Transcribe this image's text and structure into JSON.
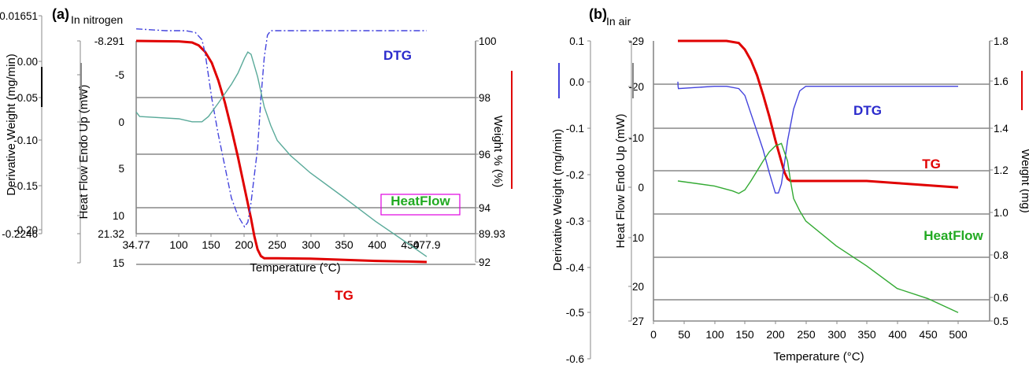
{
  "chart_data": [
    {
      "type": "line",
      "panel_label": "(a)",
      "subtitle": "In nitrogen",
      "xlabel": "Temperature (°C)",
      "xlim": [
        34.77,
        477.9
      ],
      "xticks": [
        "34.77",
        "100",
        "150",
        "200",
        "250",
        "300",
        "350",
        "400",
        "450",
        "477.9"
      ],
      "y_axes": [
        {
          "label": "Derivative Weight (mg/min)",
          "ticks": [
            "0.01651",
            "0.00",
            "-0.05",
            "-0.10",
            "-0.15",
            "-0.20",
            "-0.2246"
          ],
          "ylim": [
            -0.2246,
            0.01651
          ],
          "key_color": "#000000"
        },
        {
          "label": "Heat Flow Endo Up (mW)",
          "ticks": [
            "-8.291",
            "-5",
            "0",
            "5",
            "10",
            "15",
            "21.32"
          ],
          "ylim": [
            21.32,
            -8.291
          ],
          "key_color": "#888888"
        },
        {
          "label": "Weight % (%)",
          "ticks": [
            "100",
            "98",
            "96",
            "94",
            "92",
            "89.93"
          ],
          "ylim": [
            89.93,
            100
          ],
          "key_color": "#e00000"
        }
      ],
      "series": [
        {
          "name": "TG",
          "axis": 2,
          "color": "#e00000",
          "x": [
            34.77,
            100,
            120,
            130,
            140,
            150,
            160,
            170,
            180,
            190,
            200,
            210,
            215,
            220,
            225,
            230,
            240,
            250,
            300,
            400,
            450,
            477.9
          ],
          "y": [
            100,
            99.98,
            99.93,
            99.8,
            99.5,
            99.0,
            98.2,
            97.2,
            96.0,
            94.7,
            93.3,
            91.9,
            91.1,
            90.5,
            90.2,
            90.1,
            90.1,
            90.1,
            90.08,
            89.98,
            89.95,
            89.93
          ]
        },
        {
          "name": "DTG",
          "axis": 0,
          "color": "#4444dd",
          "x": [
            34.77,
            80,
            110,
            125,
            135,
            140,
            145,
            150,
            160,
            170,
            180,
            190,
            200,
            205,
            210,
            220,
            225,
            230,
            235,
            240,
            250,
            300,
            350,
            400,
            450,
            477.9
          ],
          "y": [
            0.002,
            0.0,
            0.0,
            -0.002,
            -0.01,
            -0.025,
            -0.05,
            -0.075,
            -0.115,
            -0.15,
            -0.185,
            -0.205,
            -0.217,
            -0.212,
            -0.19,
            -0.13,
            -0.075,
            -0.03,
            -0.005,
            0.0,
            0.0,
            0.0,
            0.0,
            0.0,
            0.0,
            0.0
          ]
        },
        {
          "name": "HeatFlow",
          "axis": 1,
          "color": "#5aaa9a",
          "x": [
            34.77,
            40,
            100,
            120,
            135,
            145,
            160,
            180,
            190,
            200,
            205,
            210,
            220,
            230,
            240,
            250,
            270,
            300,
            350,
            400,
            450,
            477.9
          ],
          "y": [
            1.2,
            1.8,
            2.1,
            2.5,
            2.5,
            1.8,
            0.0,
            -2.5,
            -4.0,
            -6.0,
            -6.8,
            -6.5,
            -3.5,
            0.5,
            3.0,
            5.0,
            7.0,
            9.3,
            12.5,
            15.8,
            18.8,
            20.5
          ]
        }
      ],
      "annotations": [
        {
          "text": "DTG",
          "color": "#2a2acc",
          "boxed": false
        },
        {
          "text": "HeatFlow",
          "color": "#22aa22",
          "boxed": true
        },
        {
          "text": "TG",
          "color": "#e00000",
          "boxed": false
        }
      ]
    },
    {
      "type": "line",
      "panel_label": "(b)",
      "subtitle": "In air",
      "xlabel": "Temperature (°C)",
      "xlim": [
        0,
        500
      ],
      "xticks": [
        "0",
        "50",
        "100",
        "150",
        "200",
        "250",
        "300",
        "350",
        "400",
        "450",
        "500"
      ],
      "y_axes": [
        {
          "label": "Derivative Weight (mg/min)",
          "ticks": [
            "0.1",
            "0.0",
            "-0.1",
            "-0.2",
            "-0.3",
            "-0.4",
            "-0.5",
            "-0.6"
          ],
          "ylim": [
            -0.6,
            0.1
          ],
          "key_color": "#4444dd"
        },
        {
          "label": "Heat Flow Endo Up (mW)",
          "ticks": [
            "-29",
            "-20",
            "-10",
            "0",
            "10",
            "20",
            "27"
          ],
          "ylim": [
            27,
            -29
          ],
          "key_color": "#888888"
        },
        {
          "label": "Weight (mg)",
          "ticks": [
            "1.8",
            "1.6",
            "1.4",
            "1.2",
            "1.0",
            "0.8",
            "0.6",
            "0.5"
          ],
          "ylim": [
            0.5,
            1.8
          ],
          "key_color": "#e00000"
        }
      ],
      "series": [
        {
          "name": "TG",
          "axis": 2,
          "color": "#e00000",
          "x": [
            40,
            120,
            140,
            150,
            160,
            170,
            180,
            190,
            200,
            210,
            215,
            220,
            225,
            230,
            240,
            250,
            300,
            350,
            400,
            450,
            500
          ],
          "y": [
            1.8,
            1.8,
            1.79,
            1.76,
            1.71,
            1.64,
            1.55,
            1.45,
            1.34,
            1.24,
            1.19,
            1.16,
            1.15,
            1.15,
            1.15,
            1.15,
            1.15,
            1.15,
            1.14,
            1.13,
            1.12
          ]
        },
        {
          "name": "DTG",
          "axis": 0,
          "color": "#4444dd",
          "x": [
            40,
            40.5,
            41,
            100,
            120,
            140,
            150,
            160,
            170,
            180,
            190,
            200,
            205,
            210,
            215,
            220,
            230,
            240,
            250,
            300,
            350,
            400,
            450,
            500
          ],
          "y": [
            0.01,
            0.0,
            -0.005,
            0.0,
            0.0,
            -0.005,
            -0.02,
            -0.06,
            -0.1,
            -0.14,
            -0.19,
            -0.235,
            -0.235,
            -0.215,
            -0.17,
            -0.12,
            -0.05,
            -0.01,
            0.0,
            0.0,
            0.0,
            0.0,
            0.0,
            0.0
          ]
        },
        {
          "name": "HeatFlow",
          "axis": 1,
          "color": "#33aa33",
          "x": [
            40,
            100,
            130,
            140,
            150,
            160,
            170,
            180,
            190,
            200,
            210,
            220,
            225,
            230,
            240,
            250,
            300,
            350,
            400,
            450,
            500
          ],
          "y": [
            -1.0,
            0.0,
            1.0,
            1.5,
            0.8,
            -1.0,
            -3.0,
            -5.0,
            -6.8,
            -8.0,
            -8.5,
            -5.0,
            -1.0,
            2.5,
            5.0,
            7.0,
            12.0,
            16.0,
            20.5,
            22.5,
            25.3
          ]
        }
      ],
      "annotations": [
        {
          "text": "DTG",
          "color": "#2a2acc",
          "boxed": false
        },
        {
          "text": "TG",
          "color": "#e00000",
          "boxed": false
        },
        {
          "text": "HeatFlow",
          "color": "#22aa22",
          "boxed": false
        }
      ]
    }
  ]
}
